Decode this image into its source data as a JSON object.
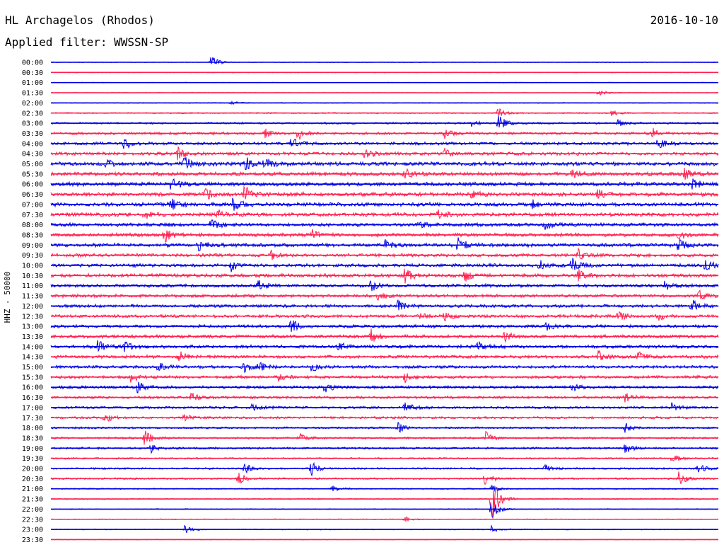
{
  "header": {
    "station": "HL Archagelos (Rhodos)",
    "date": "2016-10-10",
    "filter": "Applied filter: WWSSN-SP"
  },
  "axis": {
    "ylabel": "HHZ - 50000"
  },
  "colors": {
    "even_trace": "#0000e6",
    "odd_trace": "#ff2050"
  },
  "chart_data": {
    "type": "line",
    "title": "HL Archagelos (Rhodos)",
    "subtitle": "Applied filter: WWSSN-SP",
    "ylabel": "HHZ - 50000",
    "xlabel": "",
    "grid": false,
    "categories": [
      "00:00",
      "00:30",
      "01:00",
      "01:30",
      "02:00",
      "02:30",
      "03:00",
      "03:30",
      "04:00",
      "04:30",
      "05:00",
      "05:30",
      "06:00",
      "06:30",
      "07:00",
      "07:30",
      "08:00",
      "08:30",
      "09:00",
      "09:30",
      "10:00",
      "10:30",
      "11:00",
      "11:30",
      "12:00",
      "12:30",
      "13:00",
      "13:30",
      "14:00",
      "14:30",
      "15:00",
      "15:30",
      "16:00",
      "16:30",
      "17:00",
      "17:30",
      "18:00",
      "18:30",
      "19:00",
      "19:30",
      "20:00",
      "20:30",
      "21:00",
      "21:30",
      "22:00",
      "22:30",
      "23:00",
      "23:30"
    ],
    "trace_colors": [
      "#0000e6",
      "#ff2050"
    ],
    "noise_level": [
      0.6,
      0.6,
      0.5,
      0.6,
      0.7,
      1.0,
      1.5,
      2.0,
      2.3,
      2.5,
      3.0,
      3.0,
      3.0,
      3.0,
      3.0,
      3.0,
      2.8,
      2.8,
      2.8,
      2.5,
      2.6,
      2.8,
      2.5,
      2.4,
      2.4,
      2.4,
      2.5,
      2.6,
      2.6,
      2.5,
      2.3,
      2.3,
      2.2,
      2.0,
      2.0,
      1.8,
      1.6,
      1.6,
      1.6,
      1.4,
      1.4,
      1.4,
      1.0,
      1.0,
      0.7,
      0.7,
      0.8,
      0.6
    ],
    "events": [
      {
        "trace": "00:00",
        "pos": 0.24,
        "amp": 10
      },
      {
        "trace": "01:30",
        "pos": 0.82,
        "amp": 5
      },
      {
        "trace": "02:00",
        "pos": 0.27,
        "amp": 3
      },
      {
        "trace": "02:30",
        "pos": 0.67,
        "amp": 7
      },
      {
        "trace": "02:30",
        "pos": 0.84,
        "amp": 4
      },
      {
        "trace": "03:00",
        "pos": 0.67,
        "amp": 14
      },
      {
        "trace": "03:00",
        "pos": 0.63,
        "amp": 4
      },
      {
        "trace": "03:00",
        "pos": 0.85,
        "amp": 5
      },
      {
        "trace": "03:30",
        "pos": 0.37,
        "amp": 9
      },
      {
        "trace": "03:30",
        "pos": 0.32,
        "amp": 7
      },
      {
        "trace": "03:30",
        "pos": 0.59,
        "amp": 6
      },
      {
        "trace": "03:30",
        "pos": 0.9,
        "amp": 8
      },
      {
        "trace": "04:00",
        "pos": 0.11,
        "amp": 8
      },
      {
        "trace": "04:00",
        "pos": 0.36,
        "amp": 9
      },
      {
        "trace": "04:00",
        "pos": 0.91,
        "amp": 10
      },
      {
        "trace": "04:30",
        "pos": 0.19,
        "amp": 9
      },
      {
        "trace": "04:30",
        "pos": 0.47,
        "amp": 7
      },
      {
        "trace": "04:30",
        "pos": 0.59,
        "amp": 8
      },
      {
        "trace": "05:00",
        "pos": 0.2,
        "amp": 12
      },
      {
        "trace": "05:00",
        "pos": 0.29,
        "amp": 11
      },
      {
        "trace": "05:00",
        "pos": 0.32,
        "amp": 9
      },
      {
        "trace": "05:00",
        "pos": 0.08,
        "amp": 7
      },
      {
        "trace": "05:30",
        "pos": 0.53,
        "amp": 8
      },
      {
        "trace": "05:30",
        "pos": 0.78,
        "amp": 9
      },
      {
        "trace": "05:30",
        "pos": 0.95,
        "amp": 10
      },
      {
        "trace": "06:00",
        "pos": 0.18,
        "amp": 9
      },
      {
        "trace": "06:00",
        "pos": 0.96,
        "amp": 8
      },
      {
        "trace": "06:30",
        "pos": 0.23,
        "amp": 9
      },
      {
        "trace": "06:30",
        "pos": 0.29,
        "amp": 13
      },
      {
        "trace": "06:30",
        "pos": 0.82,
        "amp": 9
      },
      {
        "trace": "06:30",
        "pos": 0.63,
        "amp": 6
      },
      {
        "trace": "07:00",
        "pos": 0.27,
        "amp": 13
      },
      {
        "trace": "07:00",
        "pos": 0.18,
        "amp": 9
      },
      {
        "trace": "07:00",
        "pos": 0.72,
        "amp": 6
      },
      {
        "trace": "07:30",
        "pos": 0.14,
        "amp": 7
      },
      {
        "trace": "07:30",
        "pos": 0.25,
        "amp": 8
      },
      {
        "trace": "07:30",
        "pos": 0.58,
        "amp": 6
      },
      {
        "trace": "08:00",
        "pos": 0.24,
        "amp": 8
      },
      {
        "trace": "08:00",
        "pos": 0.55,
        "amp": 6
      },
      {
        "trace": "08:00",
        "pos": 0.74,
        "amp": 6
      },
      {
        "trace": "08:30",
        "pos": 0.17,
        "amp": 10
      },
      {
        "trace": "08:30",
        "pos": 0.39,
        "amp": 8
      },
      {
        "trace": "08:30",
        "pos": 0.94,
        "amp": 6
      },
      {
        "trace": "09:00",
        "pos": 0.22,
        "amp": 9
      },
      {
        "trace": "09:00",
        "pos": 0.61,
        "amp": 11
      },
      {
        "trace": "09:00",
        "pos": 0.94,
        "amp": 12
      },
      {
        "trace": "09:00",
        "pos": 0.5,
        "amp": 7
      },
      {
        "trace": "09:30",
        "pos": 0.33,
        "amp": 6
      },
      {
        "trace": "09:30",
        "pos": 0.79,
        "amp": 9
      },
      {
        "trace": "10:00",
        "pos": 0.27,
        "amp": 9
      },
      {
        "trace": "10:00",
        "pos": 0.73,
        "amp": 8
      },
      {
        "trace": "10:00",
        "pos": 0.78,
        "amp": 10
      },
      {
        "trace": "10:00",
        "pos": 0.98,
        "amp": 13
      },
      {
        "trace": "10:30",
        "pos": 0.53,
        "amp": 12
      },
      {
        "trace": "10:30",
        "pos": 0.62,
        "amp": 8
      },
      {
        "trace": "10:30",
        "pos": 0.79,
        "amp": 9
      },
      {
        "trace": "11:00",
        "pos": 0.31,
        "amp": 9
      },
      {
        "trace": "11:00",
        "pos": 0.48,
        "amp": 8
      },
      {
        "trace": "11:00",
        "pos": 0.92,
        "amp": 7
      },
      {
        "trace": "11:30",
        "pos": 0.49,
        "amp": 7
      },
      {
        "trace": "11:30",
        "pos": 0.97,
        "amp": 8
      },
      {
        "trace": "12:00",
        "pos": 0.52,
        "amp": 8
      },
      {
        "trace": "12:00",
        "pos": 0.96,
        "amp": 9
      },
      {
        "trace": "12:30",
        "pos": 0.55,
        "amp": 7
      },
      {
        "trace": "12:30",
        "pos": 0.59,
        "amp": 8
      },
      {
        "trace": "12:30",
        "pos": 0.85,
        "amp": 7
      },
      {
        "trace": "12:30",
        "pos": 0.91,
        "amp": 6
      },
      {
        "trace": "13:00",
        "pos": 0.36,
        "amp": 10
      },
      {
        "trace": "13:00",
        "pos": 0.74,
        "amp": 6
      },
      {
        "trace": "13:30",
        "pos": 0.48,
        "amp": 11
      },
      {
        "trace": "13:30",
        "pos": 0.68,
        "amp": 7
      },
      {
        "trace": "14:00",
        "pos": 0.07,
        "amp": 9
      },
      {
        "trace": "14:00",
        "pos": 0.11,
        "amp": 8
      },
      {
        "trace": "14:00",
        "pos": 0.43,
        "amp": 7
      },
      {
        "trace": "14:00",
        "pos": 0.64,
        "amp": 6
      },
      {
        "trace": "14:30",
        "pos": 0.19,
        "amp": 10
      },
      {
        "trace": "14:30",
        "pos": 0.82,
        "amp": 9
      },
      {
        "trace": "14:30",
        "pos": 0.88,
        "amp": 7
      },
      {
        "trace": "15:00",
        "pos": 0.16,
        "amp": 8
      },
      {
        "trace": "15:00",
        "pos": 0.29,
        "amp": 9
      },
      {
        "trace": "15:00",
        "pos": 0.31,
        "amp": 8
      },
      {
        "trace": "15:00",
        "pos": 0.39,
        "amp": 7
      },
      {
        "trace": "15:30",
        "pos": 0.12,
        "amp": 7
      },
      {
        "trace": "15:30",
        "pos": 0.34,
        "amp": 8
      },
      {
        "trace": "15:30",
        "pos": 0.53,
        "amp": 7
      },
      {
        "trace": "16:00",
        "pos": 0.13,
        "amp": 9
      },
      {
        "trace": "16:00",
        "pos": 0.41,
        "amp": 8
      },
      {
        "trace": "16:00",
        "pos": 0.78,
        "amp": 7
      },
      {
        "trace": "16:30",
        "pos": 0.21,
        "amp": 7
      },
      {
        "trace": "16:30",
        "pos": 0.86,
        "amp": 9
      },
      {
        "trace": "17:00",
        "pos": 0.3,
        "amp": 8
      },
      {
        "trace": "17:00",
        "pos": 0.53,
        "amp": 8
      },
      {
        "trace": "17:00",
        "pos": 0.93,
        "amp": 6
      },
      {
        "trace": "17:30",
        "pos": 0.08,
        "amp": 8
      },
      {
        "trace": "17:30",
        "pos": 0.2,
        "amp": 6
      },
      {
        "trace": "18:00",
        "pos": 0.52,
        "amp": 7
      },
      {
        "trace": "18:00",
        "pos": 0.86,
        "amp": 7
      },
      {
        "trace": "18:30",
        "pos": 0.14,
        "amp": 12
      },
      {
        "trace": "18:30",
        "pos": 0.37,
        "amp": 9
      },
      {
        "trace": "18:30",
        "pos": 0.65,
        "amp": 10
      },
      {
        "trace": "19:00",
        "pos": 0.15,
        "amp": 6
      },
      {
        "trace": "19:00",
        "pos": 0.86,
        "amp": 9
      },
      {
        "trace": "19:30",
        "pos": 0.93,
        "amp": 7
      },
      {
        "trace": "20:00",
        "pos": 0.29,
        "amp": 7
      },
      {
        "trace": "20:00",
        "pos": 0.39,
        "amp": 10
      },
      {
        "trace": "20:00",
        "pos": 0.74,
        "amp": 7
      },
      {
        "trace": "20:00",
        "pos": 0.97,
        "amp": 8
      },
      {
        "trace": "20:30",
        "pos": 0.28,
        "amp": 10
      },
      {
        "trace": "20:30",
        "pos": 0.65,
        "amp": 9
      },
      {
        "trace": "20:30",
        "pos": 0.94,
        "amp": 13
      },
      {
        "trace": "21:00",
        "pos": 0.42,
        "amp": 6
      },
      {
        "trace": "21:00",
        "pos": 0.66,
        "amp": 6
      },
      {
        "trace": "21:30",
        "pos": 0.66,
        "amp": 40
      },
      {
        "trace": "22:00",
        "pos": 0.66,
        "amp": 16
      },
      {
        "trace": "22:30",
        "pos": 0.53,
        "amp": 4
      },
      {
        "trace": "23:00",
        "pos": 0.2,
        "amp": 8
      },
      {
        "trace": "23:00",
        "pos": 0.66,
        "amp": 5
      }
    ]
  }
}
